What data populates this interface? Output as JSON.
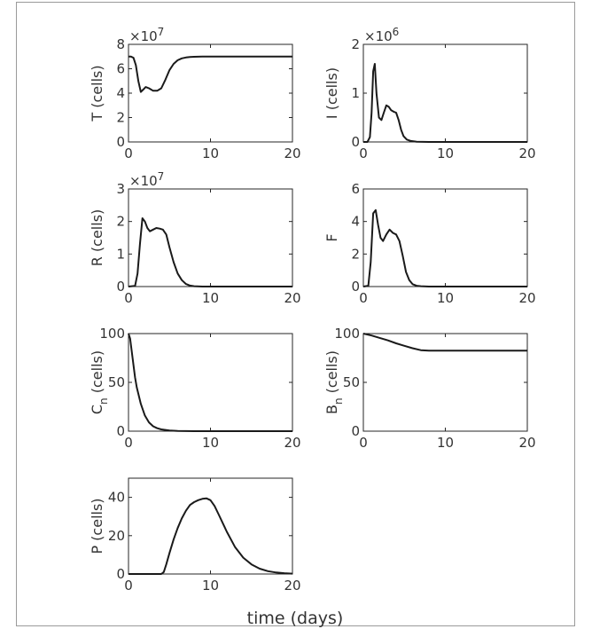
{
  "figure": {
    "xlabel": "time (days)"
  },
  "chart_data": [
    {
      "type": "line",
      "name_id": "T",
      "ylabel": "T (cells)",
      "exponent": "×10^7",
      "xlim": [
        0,
        20
      ],
      "ylim": [
        0,
        8
      ],
      "xticks": [
        "0",
        "10",
        "20"
      ],
      "yticks": [
        "0",
        "2",
        "4",
        "6",
        "8"
      ],
      "x": [
        0,
        0.3,
        0.6,
        0.9,
        1.2,
        1.5,
        1.8,
        2.1,
        2.5,
        3.0,
        3.5,
        4.0,
        4.5,
        5.0,
        5.5,
        6.0,
        6.5,
        7.0,
        7.5,
        8.0,
        9.0,
        10.0,
        12.0,
        14.0,
        16.0,
        18.0,
        20.0
      ],
      "y": [
        7.0,
        7.0,
        6.9,
        6.3,
        5.0,
        4.1,
        4.3,
        4.5,
        4.4,
        4.2,
        4.2,
        4.4,
        5.1,
        5.9,
        6.4,
        6.7,
        6.85,
        6.92,
        6.96,
        6.98,
        7.0,
        7.0,
        7.0,
        7.0,
        7.0,
        7.0,
        7.0
      ]
    },
    {
      "type": "line",
      "name_id": "I",
      "ylabel": "I (cells)",
      "exponent": "×10^6",
      "xlim": [
        0,
        20
      ],
      "ylim": [
        0,
        2
      ],
      "xticks": [
        "0",
        "10",
        "20"
      ],
      "yticks": [
        "0",
        "1",
        "2"
      ],
      "x": [
        0,
        0.5,
        0.8,
        1.0,
        1.2,
        1.4,
        1.6,
        1.9,
        2.2,
        2.5,
        2.8,
        3.1,
        3.4,
        3.7,
        4.0,
        4.3,
        4.6,
        4.9,
        5.3,
        5.8,
        6.5,
        8.0,
        10.0,
        14.0,
        20.0
      ],
      "y": [
        0,
        0.0,
        0.1,
        0.6,
        1.45,
        1.6,
        1.0,
        0.5,
        0.45,
        0.6,
        0.75,
        0.72,
        0.65,
        0.62,
        0.6,
        0.45,
        0.25,
        0.12,
        0.05,
        0.02,
        0.005,
        0,
        0,
        0,
        0
      ]
    },
    {
      "type": "line",
      "name_id": "R",
      "ylabel": "R (cells)",
      "exponent": "×10^7",
      "xlim": [
        0,
        20
      ],
      "ylim": [
        0,
        3
      ],
      "xticks": [
        "0",
        "10",
        "20"
      ],
      "yticks": [
        "0",
        "1",
        "2",
        "3"
      ],
      "x": [
        0,
        0.8,
        1.1,
        1.4,
        1.7,
        2.0,
        2.3,
        2.6,
        3.0,
        3.4,
        3.8,
        4.2,
        4.6,
        5.0,
        5.5,
        6.0,
        6.5,
        7.0,
        7.5,
        8.0,
        9.0,
        10.0,
        14.0,
        20.0
      ],
      "y": [
        0,
        0.02,
        0.4,
        1.3,
        2.1,
        2.0,
        1.8,
        1.7,
        1.75,
        1.8,
        1.78,
        1.75,
        1.6,
        1.2,
        0.75,
        0.4,
        0.2,
        0.08,
        0.03,
        0.01,
        0,
        0,
        0,
        0
      ]
    },
    {
      "type": "line",
      "name_id": "F",
      "ylabel": "F",
      "exponent": "",
      "xlim": [
        0,
        20
      ],
      "ylim": [
        0,
        6
      ],
      "xticks": [
        "0",
        "10",
        "20"
      ],
      "yticks": [
        "0",
        "2",
        "4",
        "6"
      ],
      "x": [
        0,
        0.6,
        0.9,
        1.2,
        1.5,
        1.8,
        2.1,
        2.4,
        2.8,
        3.2,
        3.6,
        4.0,
        4.4,
        4.8,
        5.2,
        5.6,
        6.0,
        6.5,
        7.0,
        8.0,
        10.0,
        14.0,
        20.0
      ],
      "y": [
        0,
        0.05,
        1.5,
        4.5,
        4.7,
        3.8,
        3.0,
        2.8,
        3.2,
        3.5,
        3.3,
        3.2,
        2.8,
        1.9,
        0.9,
        0.4,
        0.15,
        0.05,
        0.02,
        0,
        0,
        0,
        0
      ]
    },
    {
      "type": "line",
      "name_id": "Cn",
      "ylabel": "C",
      "ylabel_sub": "n",
      "ylabel_tail": " (cells)",
      "exponent": "",
      "xlim": [
        0,
        20
      ],
      "ylim": [
        0,
        100
      ],
      "xticks": [
        "0",
        "10",
        "20"
      ],
      "yticks": [
        "0",
        "50",
        "100"
      ],
      "x": [
        0,
        0.2,
        0.5,
        0.8,
        1.0,
        1.5,
        2.0,
        2.5,
        3.0,
        3.5,
        4.0,
        5.0,
        6.0,
        8.0,
        10.0,
        15.0,
        20.0
      ],
      "y": [
        100,
        95,
        75,
        55,
        45,
        28,
        16,
        9,
        5,
        3,
        1.8,
        0.6,
        0.2,
        0,
        0,
        0,
        0
      ]
    },
    {
      "type": "line",
      "name_id": "Bn",
      "ylabel": "B",
      "ylabel_sub": "n",
      "ylabel_tail": " (cells)",
      "exponent": "",
      "xlim": [
        0,
        20
      ],
      "ylim": [
        0,
        100
      ],
      "xticks": [
        "0",
        "10",
        "20"
      ],
      "yticks": [
        "0",
        "50",
        "100"
      ],
      "x": [
        0,
        1,
        2,
        3,
        4,
        5,
        6,
        7,
        8,
        10,
        15,
        20
      ],
      "y": [
        100,
        98,
        95.5,
        93,
        90,
        87.5,
        85,
        83,
        82.5,
        82.5,
        82.5,
        82.5
      ]
    },
    {
      "type": "line",
      "name_id": "P",
      "ylabel": "P (cells)",
      "exponent": "",
      "xlim": [
        0,
        20
      ],
      "ylim": [
        0,
        50
      ],
      "xticks": [
        "0",
        "10",
        "20"
      ],
      "yticks": [
        "0",
        "20",
        "40"
      ],
      "x": [
        0,
        4.0,
        4.3,
        4.6,
        5.0,
        5.5,
        6.0,
        6.5,
        7.0,
        7.5,
        8.0,
        8.5,
        9.0,
        9.5,
        10.0,
        10.5,
        11.0,
        12.0,
        13.0,
        14.0,
        15.0,
        16.0,
        17.0,
        18.0,
        19.0,
        20.0
      ],
      "y": [
        0,
        0,
        1,
        5,
        11,
        18,
        24,
        29,
        33,
        36,
        37.5,
        38.5,
        39.2,
        39.5,
        38.5,
        35.5,
        31,
        22,
        14,
        8.5,
        5,
        2.8,
        1.5,
        0.8,
        0.4,
        0.2
      ]
    }
  ]
}
